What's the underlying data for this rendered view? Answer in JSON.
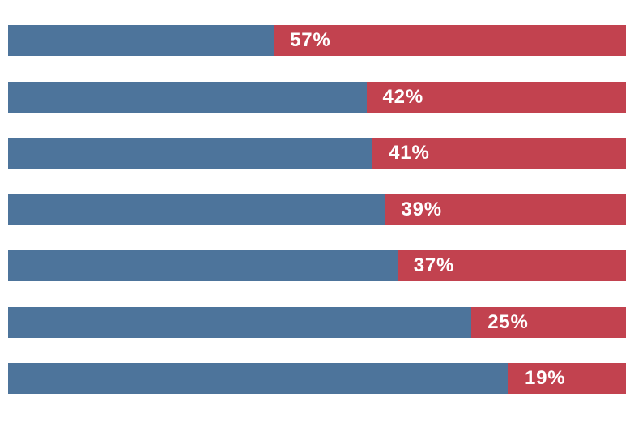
{
  "page": {
    "background_color": "#ffffff"
  },
  "chart_data": {
    "type": "bar",
    "orientation": "horizontal",
    "stacked": true,
    "title": "",
    "xlabel": "",
    "ylabel": "",
    "xlim": [
      0,
      100
    ],
    "grid": false,
    "legend": false,
    "colors": {
      "left_segment": "#4d749b",
      "right_segment": "#c2424f",
      "bar_label_text": "#ffffff"
    },
    "series": [
      {
        "name": "left-blue-segment",
        "color": "#4d749b",
        "values": [
          43,
          58,
          59,
          61,
          63,
          75,
          81
        ]
      },
      {
        "name": "right-red-segment",
        "color": "#c2424f",
        "values": [
          57,
          42,
          41,
          39,
          37,
          25,
          19
        ]
      }
    ],
    "bar_labels": {
      "applies_to": "right-red-segment",
      "position": "inside-left",
      "texts": [
        "57%",
        "42%",
        "41%",
        "39%",
        "37%",
        "25%",
        "19%"
      ]
    }
  }
}
